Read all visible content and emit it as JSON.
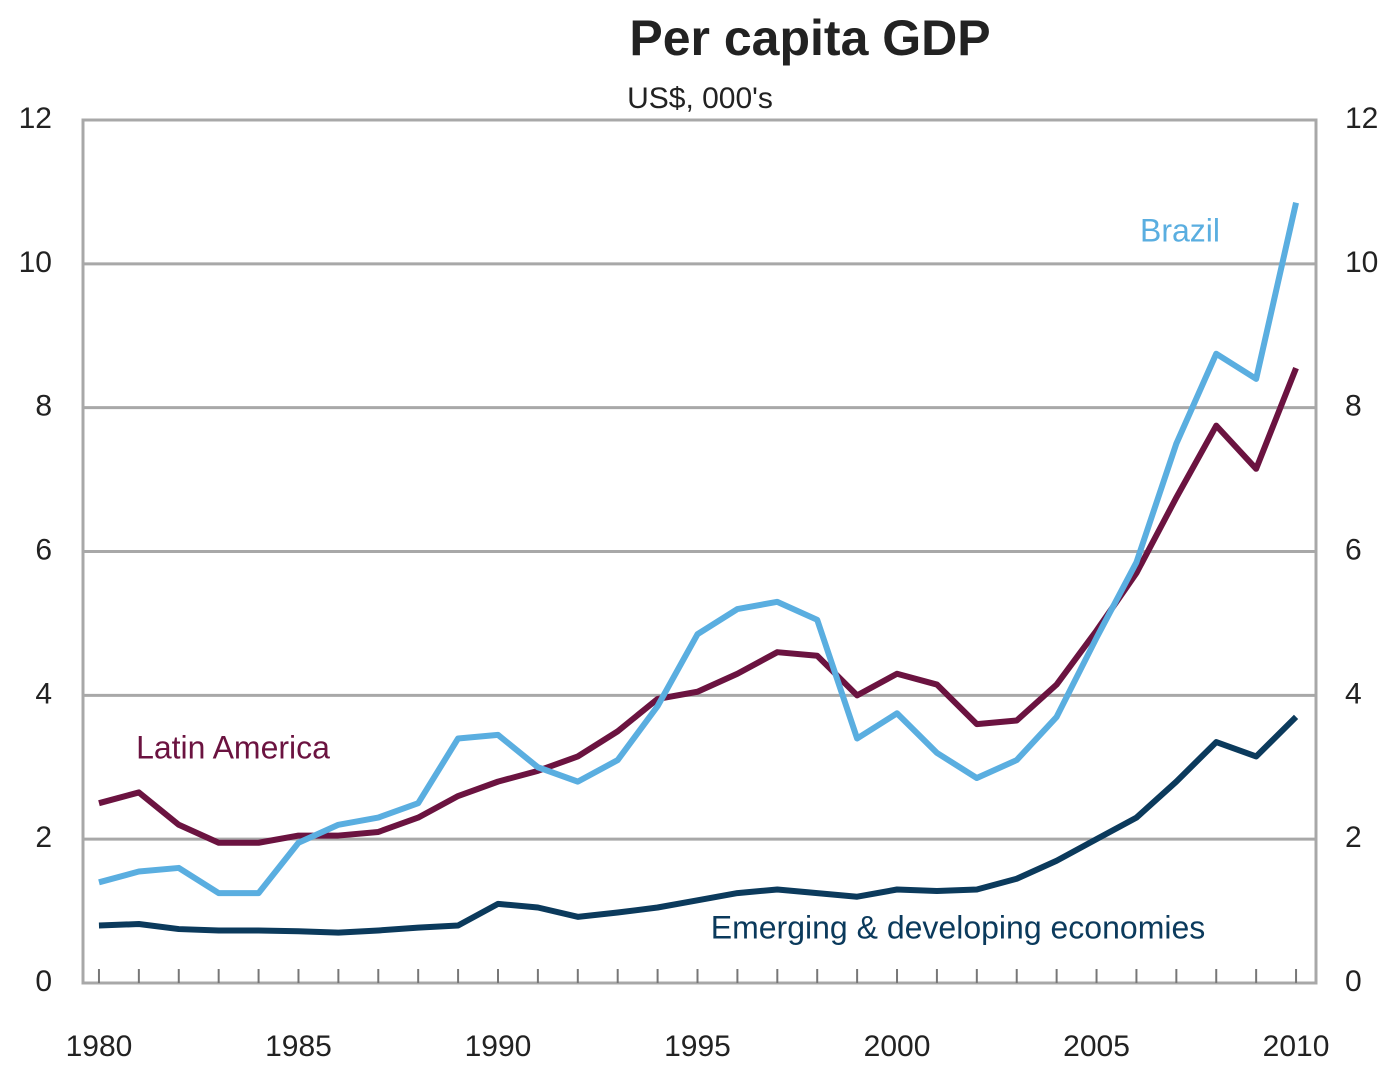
{
  "chart_data": {
    "type": "line",
    "title": "Per capita GDP",
    "subtitle": "US$, 000's",
    "x": [
      1980,
      1981,
      1982,
      1983,
      1984,
      1985,
      1986,
      1987,
      1988,
      1989,
      1990,
      1991,
      1992,
      1993,
      1994,
      1995,
      1996,
      1997,
      1998,
      1999,
      2000,
      2001,
      2002,
      2003,
      2004,
      2005,
      2006,
      2007,
      2008,
      2009,
      2010
    ],
    "series": [
      {
        "name": "Latin America",
        "color": "#6b1340",
        "values": [
          2.5,
          2.65,
          2.2,
          1.95,
          1.95,
          2.05,
          2.05,
          2.1,
          2.3,
          2.6,
          2.8,
          2.95,
          3.15,
          3.5,
          3.95,
          4.05,
          4.3,
          4.6,
          4.55,
          4.0,
          4.3,
          4.15,
          3.6,
          3.65,
          4.15,
          4.9,
          5.7,
          6.75,
          7.75,
          7.15,
          8.55
        ]
      },
      {
        "name": "Brazil",
        "color": "#5aaee0",
        "values": [
          1.4,
          1.55,
          1.6,
          1.25,
          1.25,
          1.95,
          2.2,
          2.3,
          2.5,
          3.4,
          3.45,
          3.0,
          2.8,
          3.1,
          3.85,
          4.85,
          5.2,
          5.3,
          5.05,
          3.4,
          3.75,
          3.2,
          2.85,
          3.1,
          3.7,
          4.8,
          5.85,
          7.5,
          8.75,
          8.4,
          10.85
        ]
      },
      {
        "name": "Emerging & developing economies",
        "color": "#0b3a5c",
        "values": [
          0.8,
          0.82,
          0.75,
          0.73,
          0.73,
          0.72,
          0.7,
          0.73,
          0.77,
          0.8,
          1.1,
          1.05,
          0.92,
          0.98,
          1.05,
          1.15,
          1.25,
          1.3,
          1.25,
          1.2,
          1.3,
          1.28,
          1.3,
          1.45,
          1.7,
          2.0,
          2.3,
          2.8,
          3.35,
          3.15,
          3.7
        ]
      }
    ],
    "xlim": [
      1979.6,
      2010.5
    ],
    "xticks": [
      1980,
      1985,
      1990,
      1995,
      2000,
      2005,
      2010
    ],
    "ylim": [
      0,
      12
    ],
    "yticks": [
      0,
      2,
      4,
      6,
      8,
      10,
      12
    ],
    "y2lim": [
      0,
      12
    ],
    "y2ticks": [
      0,
      2,
      4,
      6,
      8,
      10,
      12
    ],
    "grid": true
  }
}
